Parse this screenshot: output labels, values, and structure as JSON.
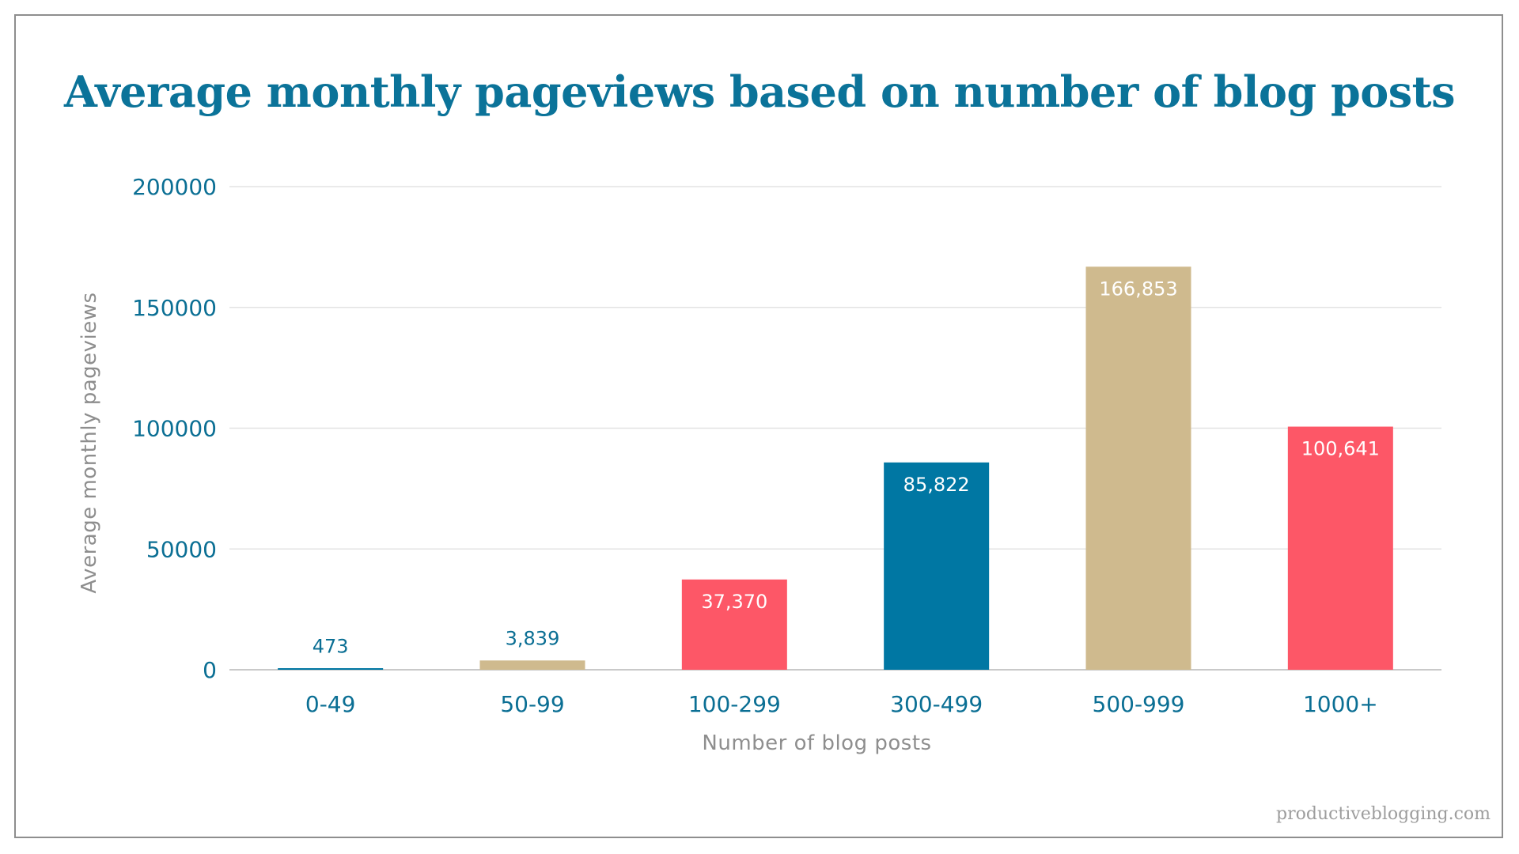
{
  "chart_data": {
    "type": "bar",
    "title": "Average monthly pageviews based on number of blog posts",
    "xlabel": "Number of blog posts",
    "ylabel": "Average monthly pageviews",
    "categories": [
      "0-49",
      "50-99",
      "100-299",
      "300-499",
      "500-999",
      "1000+"
    ],
    "values": [
      473,
      3839,
      37370,
      85822,
      166853,
      100641
    ],
    "data_labels": [
      "473",
      "3,839",
      "37,370",
      "85,822",
      "166,853",
      "100,641"
    ],
    "bar_colors": [
      "#0077a3",
      "#cfba8e",
      "#fd5767",
      "#0077a3",
      "#cfba8e",
      "#fd5767"
    ],
    "ylim": [
      0,
      200000
    ],
    "yticks": [
      "0",
      "50000",
      "100000",
      "150000",
      "200000"
    ],
    "grid": true,
    "legend": "none"
  },
  "colors": {
    "title": "#0b7399",
    "axis_ticks": "#0b6f94",
    "axis_label": "#8e8e8e",
    "gridline": "#e3e3e3"
  },
  "watermark": "productiveblogging.com"
}
